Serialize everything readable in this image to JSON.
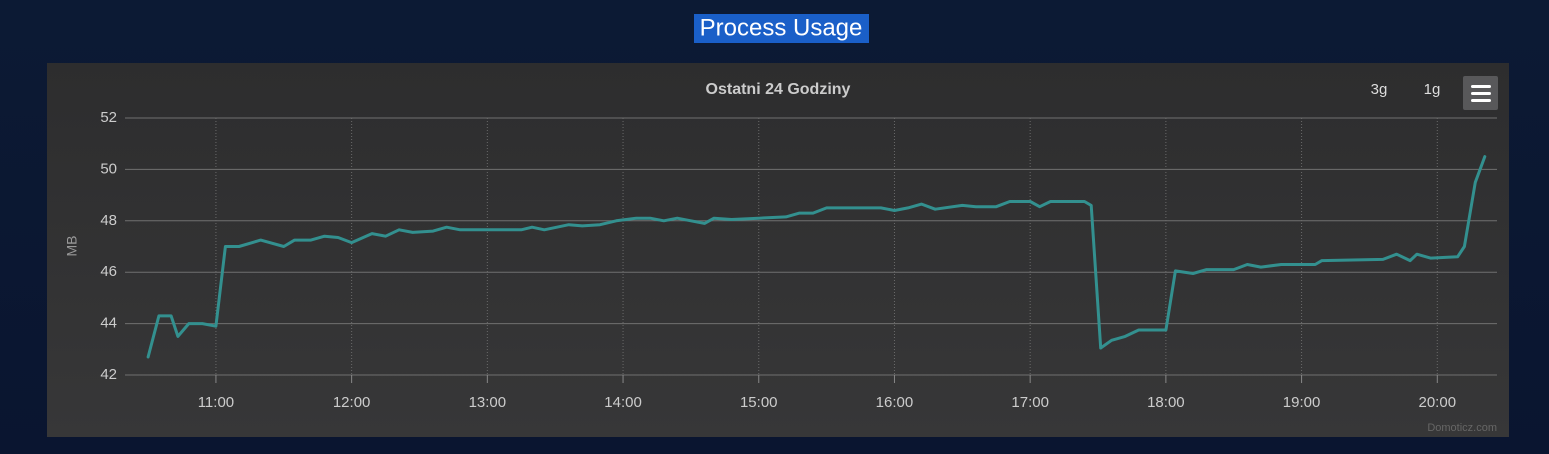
{
  "header": {
    "title": "Process Usage"
  },
  "buttons": [
    "3g",
    "1g"
  ],
  "credits": "Domoticz.com",
  "chart_data": {
    "type": "line",
    "title": "Ostatni 24 Godziny",
    "y_label": "MB",
    "x": [
      10.5,
      10.58,
      10.67,
      10.72,
      10.8,
      10.9,
      11.0,
      11.07,
      11.17,
      11.33,
      11.5,
      11.58,
      11.7,
      11.8,
      11.9,
      12.0,
      12.15,
      12.25,
      12.35,
      12.45,
      12.6,
      12.7,
      12.8,
      13.0,
      13.25,
      13.33,
      13.42,
      13.6,
      13.7,
      13.83,
      13.95,
      14.1,
      14.2,
      14.3,
      14.4,
      14.5,
      14.6,
      14.67,
      14.8,
      15.0,
      15.2,
      15.3,
      15.4,
      15.5,
      15.9,
      16.0,
      16.1,
      16.2,
      16.3,
      16.5,
      16.6,
      16.75,
      16.85,
      17.0,
      17.07,
      17.15,
      17.4,
      17.45,
      17.52,
      17.6,
      17.7,
      17.8,
      18.0,
      18.07,
      18.2,
      18.3,
      18.5,
      18.6,
      18.7,
      18.85,
      19.0,
      19.1,
      19.15,
      19.6,
      19.7,
      19.8,
      19.85,
      19.95,
      20.15,
      20.2,
      20.28,
      20.35
    ],
    "series": [
      {
        "name": "MB",
        "color": "#33908f",
        "values": [
          42.7,
          44.3,
          44.3,
          43.5,
          44.0,
          44.0,
          43.9,
          47.0,
          47.0,
          47.25,
          47.0,
          47.25,
          47.25,
          47.4,
          47.35,
          47.15,
          47.5,
          47.4,
          47.65,
          47.55,
          47.6,
          47.75,
          47.65,
          47.65,
          47.65,
          47.75,
          47.65,
          47.85,
          47.8,
          47.85,
          48.0,
          48.1,
          48.1,
          48.0,
          48.1,
          48.0,
          47.9,
          48.1,
          48.05,
          48.1,
          48.15,
          48.3,
          48.3,
          48.5,
          48.5,
          48.4,
          48.5,
          48.65,
          48.45,
          48.6,
          48.55,
          48.55,
          48.75,
          48.75,
          48.55,
          48.75,
          48.75,
          48.6,
          43.05,
          43.35,
          43.5,
          43.75,
          43.75,
          46.05,
          45.95,
          46.1,
          46.1,
          46.3,
          46.2,
          46.3,
          46.3,
          46.3,
          46.45,
          46.5,
          46.7,
          46.45,
          46.7,
          46.55,
          46.6,
          47.0,
          49.5,
          50.5
        ]
      }
    ],
    "xlim": [
      10.33,
      20.44
    ],
    "xticks": [
      {
        "value": 11,
        "label": "11:00"
      },
      {
        "value": 12,
        "label": "12:00"
      },
      {
        "value": 13,
        "label": "13:00"
      },
      {
        "value": 14,
        "label": "14:00"
      },
      {
        "value": 15,
        "label": "15:00"
      },
      {
        "value": 16,
        "label": "16:00"
      },
      {
        "value": 17,
        "label": "17:00"
      },
      {
        "value": 18,
        "label": "18:00"
      },
      {
        "value": 19,
        "label": "19:00"
      },
      {
        "value": 20,
        "label": "20:00"
      }
    ],
    "ylim": [
      42,
      52
    ],
    "yticks": [
      42,
      44,
      46,
      48,
      50,
      52
    ],
    "grid": true
  }
}
